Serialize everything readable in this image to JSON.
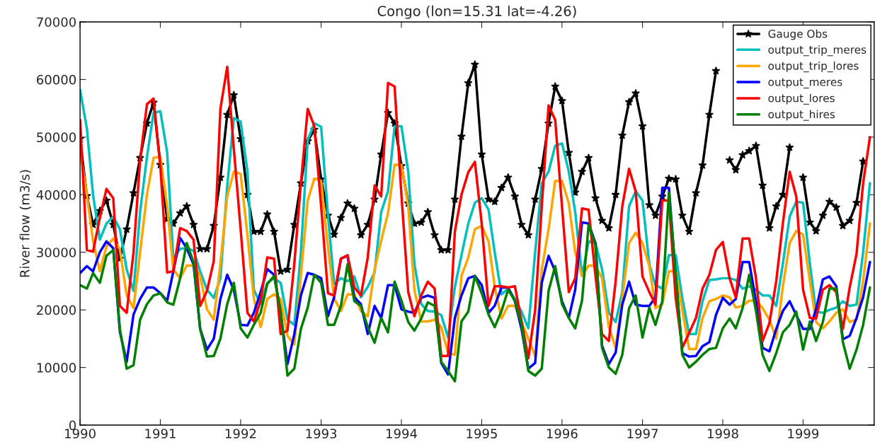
{
  "chart_data": {
    "type": "line",
    "title": "Congo (lon=15.31 lat=-4.26)",
    "ylabel": "River flow (m3/s)",
    "x": [
      "1990-01",
      "1990-02",
      "1990-03",
      "1990-04",
      "1990-05",
      "1990-06",
      "1990-07",
      "1990-08",
      "1990-09",
      "1990-10",
      "1990-11",
      "1990-12",
      "1991-01",
      "1991-02",
      "1991-03",
      "1991-04",
      "1991-05",
      "1991-06",
      "1991-07",
      "1991-08",
      "1991-09",
      "1991-10",
      "1991-11",
      "1991-12",
      "1992-01",
      "1992-02",
      "1992-03",
      "1992-04",
      "1992-05",
      "1992-06",
      "1992-07",
      "1992-08",
      "1992-09",
      "1992-10",
      "1992-11",
      "1992-12",
      "1993-01",
      "1993-02",
      "1993-03",
      "1993-04",
      "1993-05",
      "1993-06",
      "1993-07",
      "1993-08",
      "1993-09",
      "1993-10",
      "1993-11",
      "1993-12",
      "1994-01",
      "1994-02",
      "1994-03",
      "1994-04",
      "1994-05",
      "1994-06",
      "1994-07",
      "1994-08",
      "1994-09",
      "1994-10",
      "1994-11",
      "1994-12",
      "1995-01",
      "1995-02",
      "1995-03",
      "1995-04",
      "1995-05",
      "1995-06",
      "1995-07",
      "1995-08",
      "1995-09",
      "1995-10",
      "1995-11",
      "1995-12",
      "1996-01",
      "1996-02",
      "1996-03",
      "1996-04",
      "1996-05",
      "1996-06",
      "1996-07",
      "1996-08",
      "1996-09",
      "1996-10",
      "1996-11",
      "1996-12",
      "1997-01",
      "1997-02",
      "1997-03",
      "1997-04",
      "1997-05",
      "1997-06",
      "1997-07",
      "1997-08",
      "1997-09",
      "1997-10",
      "1997-11",
      "1997-12",
      "1998-01",
      "1998-02",
      "1998-03",
      "1998-04",
      "1998-05",
      "1998-06",
      "1998-07",
      "1998-08",
      "1998-09",
      "1998-10",
      "1998-11",
      "1998-12",
      "1999-01",
      "1999-02",
      "1999-03",
      "1999-04",
      "1999-05",
      "1999-06",
      "1999-07",
      "1999-08",
      "1999-09",
      "1999-10",
      "1999-11"
    ],
    "xlim": [
      "1990-01-01",
      "1999-11-20"
    ],
    "xticks": [
      {
        "value": "1990-01-01",
        "label": "1990"
      },
      {
        "value": "1991-01-01",
        "label": "1991"
      },
      {
        "value": "1992-01-01",
        "label": "1992"
      },
      {
        "value": "1993-01-01",
        "label": "1993"
      },
      {
        "value": "1994-01-01",
        "label": "1994"
      },
      {
        "value": "1995-01-01",
        "label": "1995"
      },
      {
        "value": "1996-01-01",
        "label": "1996"
      },
      {
        "value": "1997-01-01",
        "label": "1997"
      },
      {
        "value": "1998-01-01",
        "label": "1998"
      },
      {
        "value": "1999-01-01",
        "label": "1999"
      }
    ],
    "ylim": [
      0,
      70000
    ],
    "yticks": [
      0,
      10000,
      20000,
      30000,
      40000,
      50000,
      60000,
      70000
    ],
    "grid": false,
    "legend": "top right",
    "line_style": "solid",
    "series": [
      {
        "name": "Gauge Obs",
        "color": "#000000",
        "marker": "star",
        "values": [
          49700,
          39800,
          34800,
          37200,
          39000,
          34800,
          28900,
          34000,
          40300,
          46400,
          52400,
          56000,
          45200,
          35800,
          35000,
          36800,
          38000,
          34800,
          30600,
          30600,
          34600,
          43000,
          53900,
          57300,
          49700,
          40000,
          33600,
          33600,
          36600,
          33600,
          26700,
          27000,
          34800,
          42000,
          49300,
          51300,
          42700,
          36400,
          33100,
          36000,
          38500,
          37600,
          33000,
          34800,
          39200,
          47000,
          54200,
          52400,
          45000,
          38500,
          35000,
          35200,
          37000,
          33000,
          30400,
          30400,
          39200,
          50100,
          59400,
          62600,
          47000,
          39200,
          38800,
          41200,
          43000,
          39700,
          34800,
          33000,
          39200,
          44500,
          52400,
          58800,
          56300,
          47300,
          40400,
          44000,
          46400,
          39400,
          35500,
          34200,
          40000,
          50300,
          56100,
          57600,
          51900,
          38200,
          36400,
          39700,
          42800,
          42700,
          36400,
          33600,
          40300,
          45100,
          53900,
          61500,
          null,
          46000,
          44300,
          46900,
          47600,
          48500,
          41600,
          34200,
          38000,
          40000,
          48200,
          null,
          43000,
          35200,
          33700,
          36400,
          38800,
          37800,
          34600,
          35500,
          38600,
          45800,
          null
        ]
      },
      {
        "name": "output_trip_meres",
        "color": "#00bfbf",
        "values": [
          58200,
          51500,
          40000,
          32200,
          35000,
          36200,
          34000,
          27000,
          23300,
          37000,
          46500,
          54200,
          54500,
          47300,
          28900,
          30600,
          30700,
          30300,
          26700,
          23500,
          22100,
          25500,
          41500,
          53300,
          52700,
          44000,
          23500,
          21000,
          24700,
          25500,
          24700,
          18300,
          17400,
          30000,
          49500,
          52400,
          51800,
          36500,
          24500,
          25500,
          25000,
          25800,
          22200,
          24000,
          26500,
          37000,
          40600,
          51900,
          51900,
          44000,
          28000,
          21000,
          19800,
          19700,
          19100,
          15200,
          24000,
          29500,
          35000,
          38600,
          39400,
          37400,
          30000,
          22700,
          23700,
          21900,
          19700,
          16800,
          30000,
          42000,
          44000,
          48500,
          48900,
          44000,
          37000,
          25900,
          31900,
          31600,
          27100,
          19500,
          17900,
          23100,
          38000,
          40600,
          39000,
          27900,
          24300,
          23700,
          29500,
          29500,
          22000,
          15800,
          15800,
          21500,
          25200,
          25300,
          25500,
          25500,
          25200,
          23700,
          24100,
          23500,
          22500,
          22500,
          20700,
          28000,
          36200,
          38800,
          38600,
          28000,
          19700,
          19500,
          20000,
          20400,
          21500,
          20700,
          20900,
          30000,
          42000
        ]
      },
      {
        "name": "output_trip_lores",
        "color": "#ffa500",
        "values": [
          48000,
          40000,
          32000,
          26700,
          31000,
          32400,
          30500,
          22500,
          20300,
          30000,
          40000,
          46400,
          46600,
          38000,
          27000,
          25500,
          27700,
          27700,
          25900,
          20100,
          18300,
          28000,
          39700,
          44000,
          43600,
          33000,
          22000,
          17000,
          21900,
          22700,
          21900,
          15500,
          14000,
          26000,
          39000,
          42800,
          42400,
          31000,
          22000,
          19800,
          22700,
          22700,
          19800,
          18900,
          27000,
          32000,
          36800,
          45200,
          45200,
          38000,
          23500,
          18000,
          18000,
          18300,
          17000,
          12500,
          12200,
          25900,
          29100,
          34000,
          34600,
          31900,
          24000,
          18500,
          20700,
          20700,
          17900,
          15000,
          12000,
          27000,
          34000,
          42400,
          42400,
          38500,
          30000,
          25900,
          27700,
          27700,
          25500,
          17000,
          13400,
          22000,
          31600,
          33400,
          31600,
          27600,
          20300,
          21000,
          26700,
          26700,
          20000,
          13200,
          13200,
          18600,
          21500,
          21900,
          22500,
          22200,
          20400,
          20700,
          21600,
          21600,
          20300,
          18300,
          15000,
          24000,
          31600,
          33700,
          33100,
          25000,
          17900,
          16800,
          18000,
          19500,
          20100,
          17900,
          18300,
          25000,
          35000
        ]
      },
      {
        "name": "output_meres",
        "color": "#0000ff",
        "values": [
          26400,
          27600,
          26700,
          30000,
          31900,
          30700,
          16200,
          11000,
          19200,
          21900,
          23900,
          23900,
          22900,
          21600,
          26700,
          32500,
          30700,
          27900,
          16700,
          13100,
          15000,
          21900,
          26100,
          23500,
          17400,
          17300,
          19500,
          23100,
          27100,
          26100,
          19500,
          10600,
          15800,
          22500,
          26400,
          26100,
          25500,
          18900,
          22200,
          28900,
          29400,
          22200,
          21000,
          15800,
          20700,
          18600,
          24300,
          24300,
          20100,
          19700,
          19500,
          22100,
          22500,
          22100,
          10800,
          8800,
          18600,
          22500,
          25500,
          25900,
          24300,
          19500,
          20700,
          23900,
          23900,
          21500,
          16700,
          9800,
          10800,
          24700,
          29400,
          26700,
          21500,
          18600,
          23500,
          35200,
          35000,
          31600,
          13800,
          10600,
          12600,
          20900,
          24900,
          20900,
          20700,
          20700,
          22200,
          41200,
          41200,
          26000,
          12500,
          11900,
          12000,
          13700,
          14400,
          19100,
          22100,
          20900,
          21900,
          28300,
          28300,
          21500,
          13400,
          12800,
          16700,
          19800,
          21500,
          19100,
          16700,
          16700,
          20100,
          25300,
          25800,
          24100,
          14900,
          15500,
          18600,
          22200,
          28300
        ]
      },
      {
        "name": "output_lores",
        "color": "#ff0000",
        "values": [
          53000,
          30400,
          30100,
          36000,
          41000,
          39400,
          20700,
          19500,
          30000,
          46000,
          55700,
          56700,
          45000,
          26500,
          26700,
          34200,
          33700,
          32200,
          20700,
          23300,
          28500,
          54900,
          62200,
          48000,
          34000,
          19500,
          18000,
          21600,
          29100,
          28900,
          15800,
          16400,
          28000,
          42000,
          54900,
          51900,
          38000,
          22900,
          22500,
          28900,
          29500,
          23900,
          22500,
          29100,
          41600,
          39700,
          59400,
          58800,
          40000,
          23100,
          18900,
          22500,
          24900,
          23700,
          12000,
          12000,
          33600,
          40000,
          43900,
          45700,
          35000,
          20700,
          24100,
          24100,
          23900,
          24100,
          18000,
          11600,
          20000,
          38000,
          55500,
          53000,
          38000,
          23100,
          25500,
          37600,
          37400,
          26000,
          15800,
          14600,
          25000,
          38000,
          44500,
          40600,
          25800,
          23100,
          20900,
          39000,
          39000,
          22000,
          13400,
          16000,
          18600,
          23700,
          26100,
          30400,
          31800,
          25500,
          22200,
          32400,
          32400,
          25500,
          14600,
          17700,
          25000,
          35000,
          44000,
          39700,
          23500,
          18600,
          18500,
          23500,
          24300,
          23100,
          16700,
          23900,
          29700,
          42000,
          50000
        ]
      },
      {
        "name": "output_hires",
        "color": "#008000",
        "values": [
          24300,
          23700,
          26400,
          24700,
          29400,
          30400,
          16700,
          9800,
          10400,
          18300,
          21000,
          22500,
          22900,
          21300,
          20900,
          25500,
          31600,
          28300,
          16700,
          11900,
          12000,
          15000,
          21000,
          24700,
          16800,
          15200,
          17400,
          19500,
          24500,
          25900,
          19800,
          8600,
          9800,
          16700,
          20400,
          26100,
          24700,
          17400,
          17400,
          20700,
          27900,
          21500,
          20700,
          17000,
          14300,
          18600,
          16100,
          24900,
          21600,
          17900,
          16400,
          18500,
          21300,
          20700,
          11000,
          9400,
          7600,
          18000,
          19700,
          25900,
          22900,
          19200,
          17000,
          19800,
          23500,
          21600,
          17400,
          9400,
          8600,
          9800,
          23300,
          27600,
          21000,
          18600,
          16800,
          21600,
          34800,
          31200,
          13400,
          10000,
          8900,
          12200,
          20300,
          22500,
          15200,
          20400,
          17400,
          21500,
          40400,
          26000,
          12200,
          10000,
          11000,
          12200,
          13200,
          13400,
          16800,
          18500,
          16800,
          20300,
          26100,
          19800,
          12200,
          9400,
          12500,
          16100,
          17400,
          19700,
          13100,
          18000,
          14600,
          17900,
          23700,
          23700,
          14400,
          9800,
          13100,
          17400,
          23900
        ]
      }
    ]
  }
}
